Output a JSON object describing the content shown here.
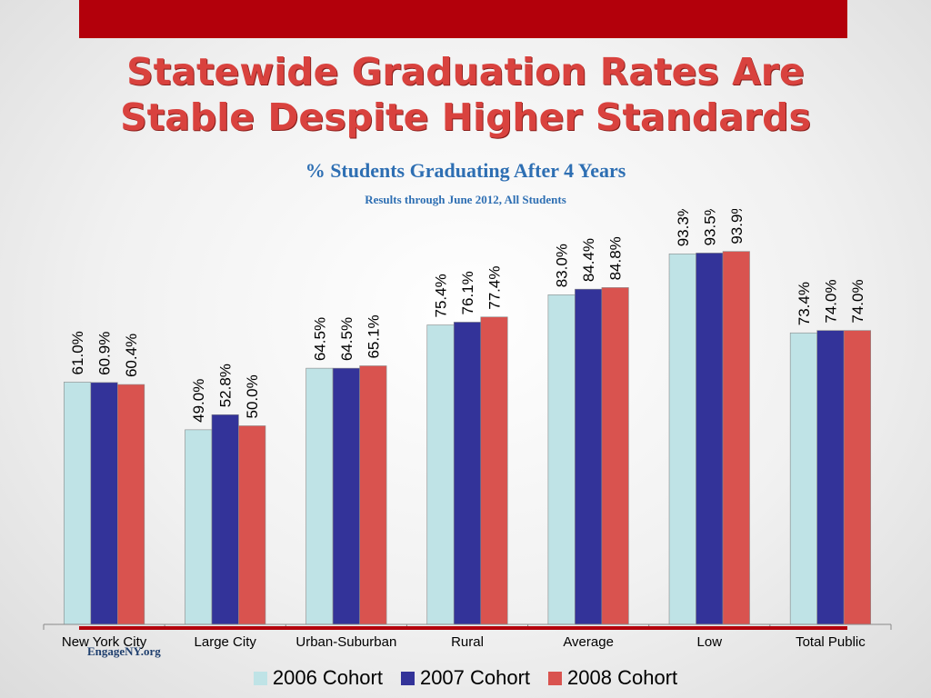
{
  "header": {
    "title_line1": "Statewide Graduation Rates Are",
    "title_line2": "Stable Despite Higher Standards",
    "subtitle": "% Students Graduating After 4 Years",
    "subsubtitle": "Results through June 2012, All Students"
  },
  "footer": {
    "brand": "EngageNY.org"
  },
  "chart_data": {
    "type": "bar",
    "title": "% Students Graduating After 4 Years",
    "subtitle": "Results through June 2012, All Students",
    "categories": [
      "New York City",
      "Large City",
      "Urban-Suburban",
      "Rural",
      "Average",
      "Low",
      "Total Public"
    ],
    "series": [
      {
        "name": "2006 Cohort",
        "color": "#bfe3e6",
        "values": [
          61.0,
          49.0,
          64.5,
          75.4,
          83.0,
          93.3,
          73.4
        ],
        "labels": [
          "61.0%",
          "49.0%",
          "64.5%",
          "75.4%",
          "83.0%",
          "93.3%",
          "73.4%"
        ]
      },
      {
        "name": "2007 Cohort",
        "color": "#333399",
        "values": [
          60.9,
          52.8,
          64.5,
          76.1,
          84.4,
          93.5,
          74.0
        ],
        "labels": [
          "60.9%",
          "52.8%",
          "64.5%",
          "76.1%",
          "84.4%",
          "93.5%",
          "74.0%"
        ]
      },
      {
        "name": "2008 Cohort",
        "color": "#d9534f",
        "values": [
          60.4,
          50.0,
          65.1,
          77.4,
          84.8,
          93.9,
          74.0
        ],
        "labels": [
          "60.4%",
          "50.0%",
          "65.1%",
          "77.4%",
          "84.8%",
          "93.9%",
          "74.0%"
        ]
      }
    ],
    "xlabel": "",
    "ylabel": "",
    "ylim": [
      0,
      100
    ],
    "grid": false,
    "legend_position": "bottom"
  }
}
